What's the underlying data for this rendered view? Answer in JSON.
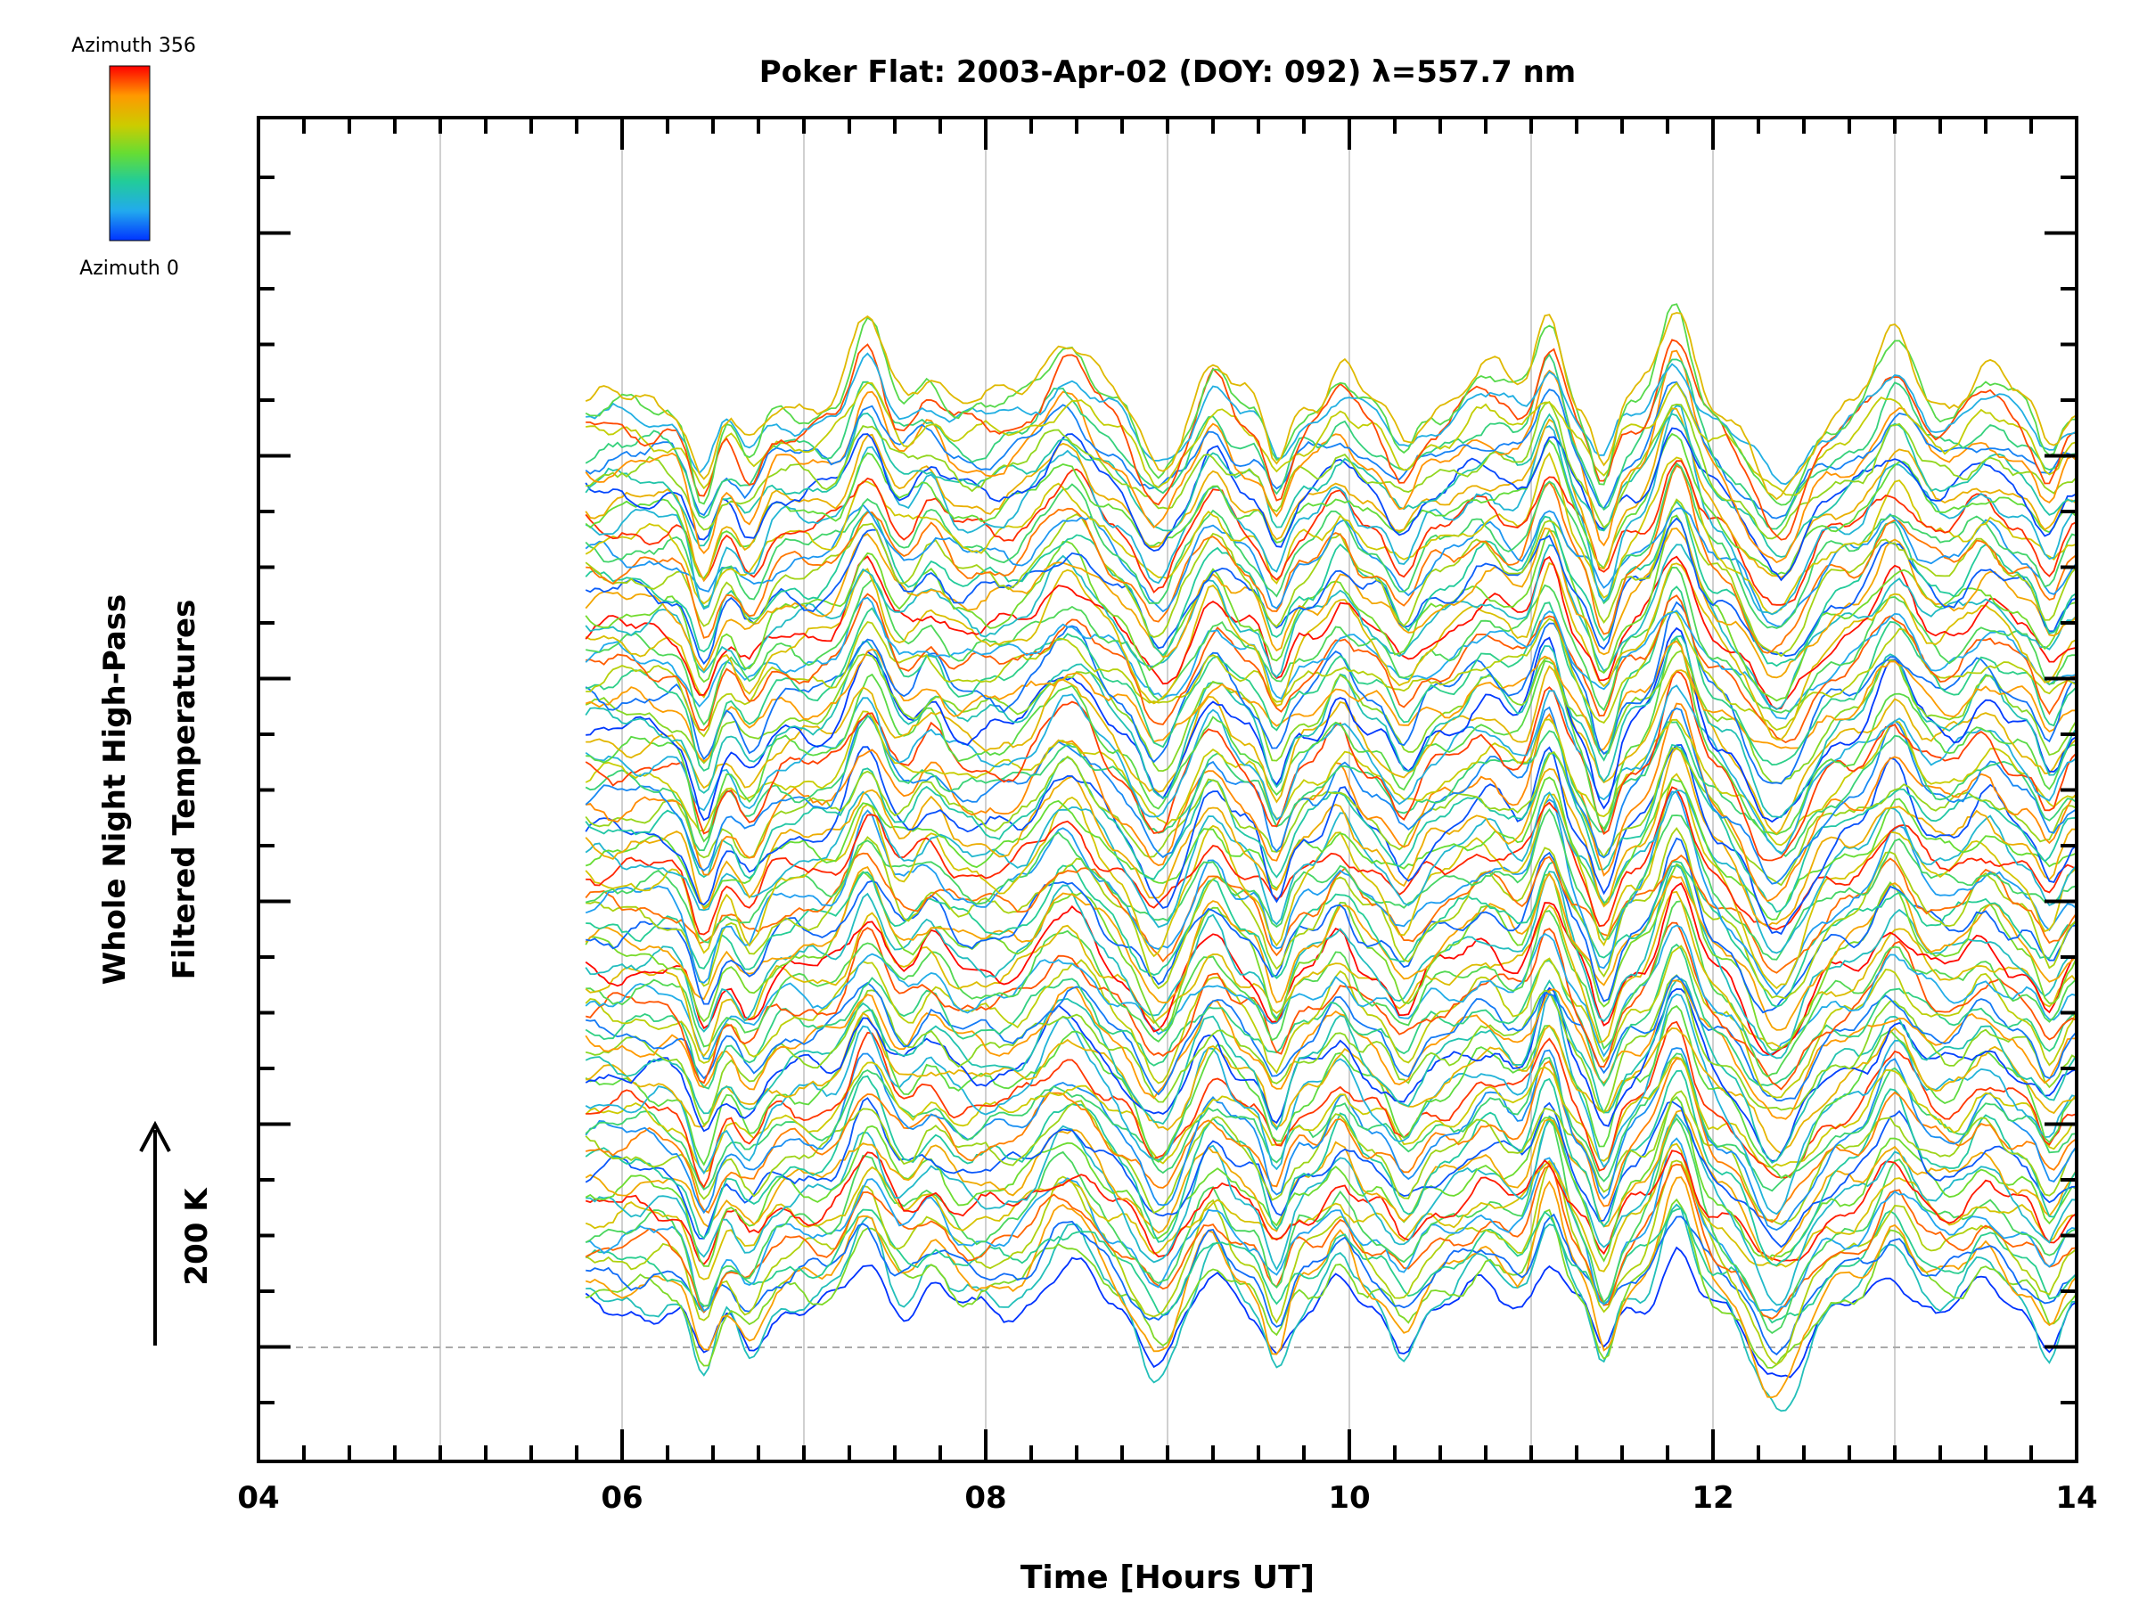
{
  "chart_data": {
    "type": "line",
    "title": "Poker Flat: 2003-Apr-02 (DOY: 092) λ=557.7 nm",
    "xlabel": "Time [Hours UT]",
    "ylabel_line1": "Whole Night High-Pass",
    "ylabel_line2": "Filtered Temperatures",
    "scale_label": "200 K",
    "xlim": [
      4,
      14
    ],
    "x_ticks": [
      "04",
      "06",
      "08",
      "10",
      "12",
      "14"
    ],
    "x_tick_values": [
      4,
      6,
      8,
      10,
      12,
      14
    ],
    "data_start_hour": 5.8,
    "data_end_hour": 14,
    "colorbar": {
      "max_label": "Azimuth 356",
      "min_label": "Azimuth 0",
      "colors": [
        "#ff0000",
        "#ff9900",
        "#cccc00",
        "#66dd33",
        "#22cc99",
        "#22aaee",
        "#0033ff"
      ]
    },
    "grid": "vertical lines at each hour",
    "baseline": "dashed",
    "series_count": 100,
    "series_color_mapping": "azimuth 0 (blue) to azimuth 356 (red), stacked with vertical offsets"
  }
}
